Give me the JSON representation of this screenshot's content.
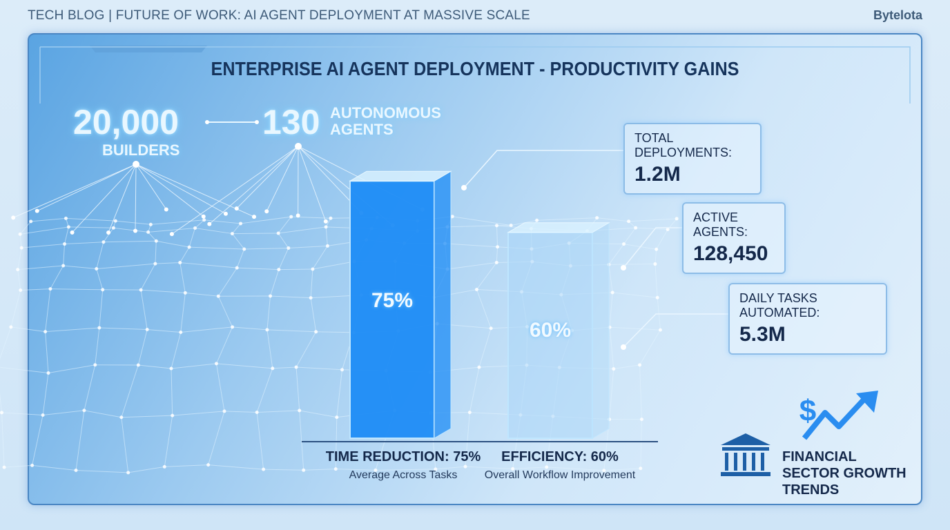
{
  "header": {
    "blog_title": "TECH BLOG | FUTURE OF WORK: AI AGENT DEPLOYMENT AT MASSIVE SCALE",
    "brand": "Bytelota"
  },
  "stats": {
    "builders": {
      "value": "20,000",
      "label": "BUILDERS"
    },
    "agents": {
      "value": "130",
      "label": "AUTONOMOUS AGENTS"
    }
  },
  "chart_data": {
    "type": "bar",
    "title": "ENTERPRISE AI AGENT DEPLOYMENT - PRODUCTIVITY GAINS",
    "categories": [
      "TIME REDUCTION: 75%",
      "EFFICIENCY: 60%"
    ],
    "category_descriptions": [
      "Average Across Tasks",
      "Overall Workflow Improvement"
    ],
    "values": [
      75,
      60
    ],
    "value_labels": [
      "75%",
      "60%"
    ],
    "colors": [
      "#1e8cf5",
      "#a9d6f7"
    ]
  },
  "metrics": [
    {
      "label": "TOTAL DEPLOYMENTS:",
      "value": "1.2M"
    },
    {
      "label": "ACTIVE AGENTS:",
      "value": "128,450"
    },
    {
      "label": "DAILY TASKS AUTOMATED:",
      "value": "5.3M"
    }
  ],
  "footer": {
    "sector": "FINANCIAL SECTOR GROWTH TRENDS"
  }
}
